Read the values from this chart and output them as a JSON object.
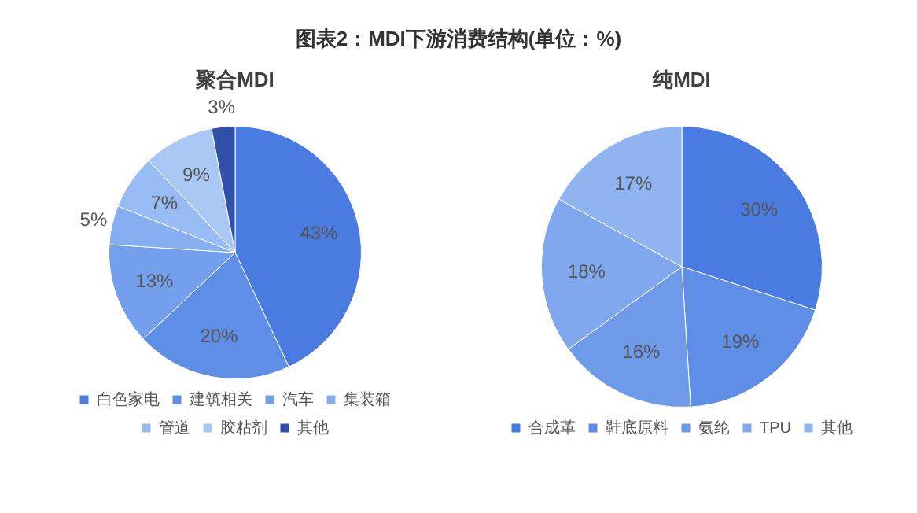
{
  "chart_data": [
    {
      "type": "pie",
      "title": "图表2：MDI下游消费结构(单位：%)",
      "subtitle": "聚合MDI",
      "categories": [
        "白色家电",
        "建筑相关",
        "汽车",
        "集装箱",
        "管道",
        "胶粘剂",
        "其他"
      ],
      "values": [
        43,
        20,
        13,
        5,
        7,
        9,
        3
      ],
      "colors": [
        "#4a7be0",
        "#5f8ee6",
        "#739fec",
        "#86aef0",
        "#97bbf2",
        "#aac8f4",
        "#2f4fa8"
      ],
      "value_labels": [
        "43%",
        "20%",
        "13%",
        "5%",
        "7%",
        "9%",
        "3%"
      ],
      "legend": "bottom"
    },
    {
      "type": "pie",
      "title": "纯MDI",
      "categories": [
        "合成革",
        "鞋底原料",
        "氨纶",
        "TPU",
        "其他"
      ],
      "values": [
        30,
        19,
        16,
        18,
        17
      ],
      "colors": [
        "#4a7be0",
        "#5f8ee6",
        "#6f9aea",
        "#7fa8ee",
        "#8fb4f0"
      ],
      "value_labels": [
        "30%",
        "19%",
        "16%",
        "18%",
        "17%"
      ],
      "legend": "bottom"
    }
  ]
}
